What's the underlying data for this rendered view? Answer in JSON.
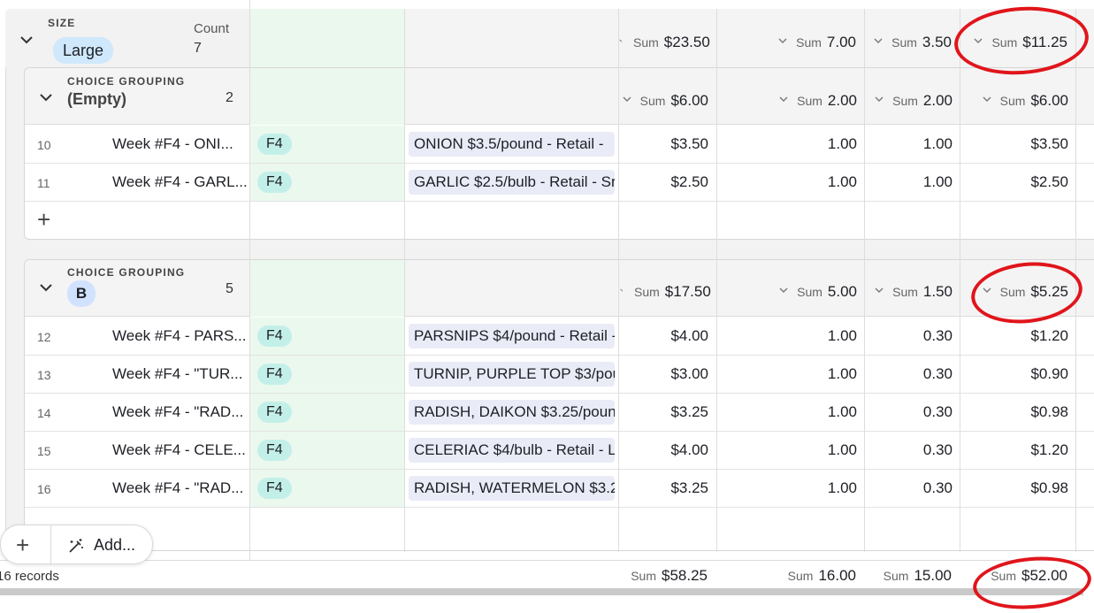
{
  "outer_group": {
    "field_label": "SIZE",
    "value": "Large",
    "count_label": "Count",
    "count": "7",
    "sums": [
      {
        "label": "Sum",
        "value": "$23.50"
      },
      {
        "label": "Sum",
        "value": "7.00"
      },
      {
        "label": "Sum",
        "value": "3.50"
      },
      {
        "label": "Sum",
        "value": "$11.25"
      }
    ]
  },
  "subgroups": [
    {
      "field_label": "CHOICE GROUPING",
      "value": "(Empty)",
      "count": "2",
      "sums": [
        {
          "label": "Sum",
          "value": "$6.00"
        },
        {
          "label": "Sum",
          "value": "2.00"
        },
        {
          "label": "Sum",
          "value": "2.00"
        },
        {
          "label": "Sum",
          "value": "$6.00"
        }
      ],
      "rows": [
        {
          "num": "10",
          "name": "Week #F4 - ONI...",
          "tag": "F4",
          "product": "ONION $3.5/pound - Retail - ",
          "c1": "$3.50",
          "c2": "1.00",
          "c3": "1.00",
          "c4": "$3.50"
        },
        {
          "num": "11",
          "name": "Week #F4 - GARL...",
          "tag": "F4",
          "product": "GARLIC $2.5/bulb - Retail - Sr",
          "c1": "$2.50",
          "c2": "1.00",
          "c3": "1.00",
          "c4": "$2.50"
        }
      ]
    },
    {
      "field_label": "CHOICE GROUPING",
      "value": "B",
      "count": "5",
      "sums": [
        {
          "label": "Sum",
          "value": "$17.50"
        },
        {
          "label": "Sum",
          "value": "5.00"
        },
        {
          "label": "Sum",
          "value": "1.50"
        },
        {
          "label": "Sum",
          "value": "$5.25"
        }
      ],
      "rows": [
        {
          "num": "12",
          "name": "Week #F4 - PARS...",
          "tag": "F4",
          "product": "PARSNIPS $4/pound - Retail - ",
          "c1": "$4.00",
          "c2": "1.00",
          "c3": "0.30",
          "c4": "$1.20"
        },
        {
          "num": "13",
          "name": "Week #F4 - \"TUR...",
          "tag": "F4",
          "product": "TURNIP, PURPLE TOP $3/pou",
          "c1": "$3.00",
          "c2": "1.00",
          "c3": "0.30",
          "c4": "$0.90"
        },
        {
          "num": "14",
          "name": "Week #F4 - \"RAD...",
          "tag": "F4",
          "product": "RADISH, DAIKON $3.25/poun",
          "c1": "$3.25",
          "c2": "1.00",
          "c3": "0.30",
          "c4": "$0.98"
        },
        {
          "num": "15",
          "name": "Week #F4 - CELE...",
          "tag": "F4",
          "product": "CELERIAC $4/bulb - Retail - La",
          "c1": "$4.00",
          "c2": "1.00",
          "c3": "0.30",
          "c4": "$1.20"
        },
        {
          "num": "16",
          "name": "Week #F4 - \"RAD...",
          "tag": "F4",
          "product": "RADISH, WATERMELON $3.25",
          "c1": "$3.25",
          "c2": "1.00",
          "c3": "0.30",
          "c4": "$0.98"
        }
      ]
    }
  ],
  "footer": {
    "records": "16 records",
    "sums": [
      {
        "label": "Sum",
        "value": "$58.25"
      },
      {
        "label": "Sum",
        "value": "16.00"
      },
      {
        "label": "Sum",
        "value": "15.00"
      },
      {
        "label": "Sum",
        "value": "$52.00"
      }
    ]
  },
  "toolbar": {
    "add_label": "Add..."
  },
  "icons": {
    "expand": "chevron-down-icon",
    "add": "plus-icon",
    "magic": "magic-wand-icon"
  },
  "colors": {
    "annotation": "#e0151b",
    "tag_bg": "#c3efe9",
    "tag_cell_bg": "#ebf8ee",
    "product_bg": "#e9ecf7",
    "pill_large": "#cfe8fc",
    "pill_b": "#d1e2ff"
  }
}
